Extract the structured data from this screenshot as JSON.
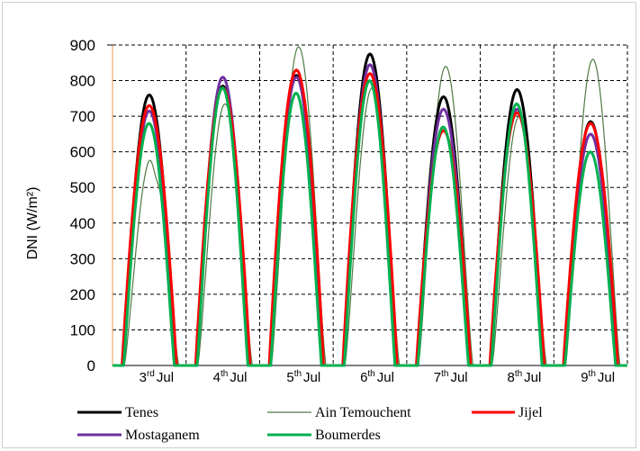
{
  "chart_data": {
    "type": "line",
    "ylabel": "DNI (W/m²)",
    "ylim": [
      0,
      900
    ],
    "yticks": [
      0,
      100,
      200,
      300,
      400,
      500,
      600,
      700,
      800,
      900
    ],
    "grid": "dashed, vertical and horizontal",
    "legend_position": "bottom",
    "categories": [
      {
        "day": "3",
        "sup": "rd",
        "unit": "Jul"
      },
      {
        "day": "4",
        "sup": "th",
        "unit": "Jul"
      },
      {
        "day": "5",
        "sup": "th",
        "unit": "Jul"
      },
      {
        "day": "6",
        "sup": "th",
        "unit": "Jul"
      },
      {
        "day": "7",
        "sup": "th",
        "unit": "Jul"
      },
      {
        "day": "8",
        "sup": "th",
        "unit": "Jul"
      },
      {
        "day": "9",
        "sup": "th",
        "unit": "Jul"
      }
    ],
    "series": [
      {
        "name": "Tenes",
        "color": "#000000",
        "width": 3,
        "daily_peaks": [
          760,
          785,
          815,
          875,
          755,
          775,
          685
        ]
      },
      {
        "name": "Ain Temouchent",
        "color": "#4e7a43",
        "width": 1.2,
        "daily_peaks": [
          585,
          735,
          895,
          780,
          840,
          700,
          860
        ]
      },
      {
        "name": "Jijel",
        "color": "#ff0000",
        "width": 3,
        "daily_peaks": [
          730,
          780,
          830,
          820,
          660,
          710,
          680
        ]
      },
      {
        "name": "Mostaganem",
        "color": "#7030a0",
        "width": 3,
        "daily_peaks": [
          715,
          810,
          810,
          845,
          720,
          720,
          650
        ]
      },
      {
        "name": "Boumerdes",
        "color": "#00b050",
        "width": 3,
        "daily_peaks": [
          680,
          780,
          765,
          800,
          670,
          735,
          600
        ]
      }
    ]
  }
}
